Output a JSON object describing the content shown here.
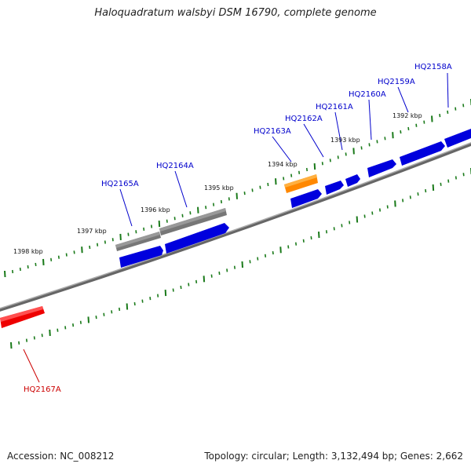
{
  "title": "Haloquadratum walsbyi DSM 16790, complete genome",
  "footer": {
    "accession": "Accession: NC_008212",
    "summary": "Topology: circular; Length: 3,132,494 bp; Genes: 2,662"
  },
  "colors": {
    "forward_gene": "#0000ee",
    "other_feature": "#666666",
    "highlight": "#ff8c00",
    "focus_gene": "#ff0000",
    "tick": "#1a7a1a",
    "backbone": "#888888"
  },
  "ticks": [
    {
      "label": "1392 kbp"
    },
    {
      "label": "1393 kbp"
    },
    {
      "label": "1394 kbp"
    },
    {
      "label": "1395 kbp"
    },
    {
      "label": "1396 kbp"
    },
    {
      "label": "1397 kbp"
    },
    {
      "label": "1398 kbp"
    }
  ],
  "genes": [
    {
      "label": "HQ2158A",
      "color": "#0000cc"
    },
    {
      "label": "HQ2159A",
      "color": "#0000cc"
    },
    {
      "label": "HQ2160A",
      "color": "#0000cc"
    },
    {
      "label": "HQ2161A",
      "color": "#0000cc"
    },
    {
      "label": "HQ2162A",
      "color": "#0000cc"
    },
    {
      "label": "HQ2163A",
      "color": "#0000cc"
    },
    {
      "label": "HQ2164A",
      "color": "#0000cc"
    },
    {
      "label": "HQ2165A",
      "color": "#0000cc"
    },
    {
      "label": "HQ2167A",
      "color": "#cc0000"
    }
  ]
}
